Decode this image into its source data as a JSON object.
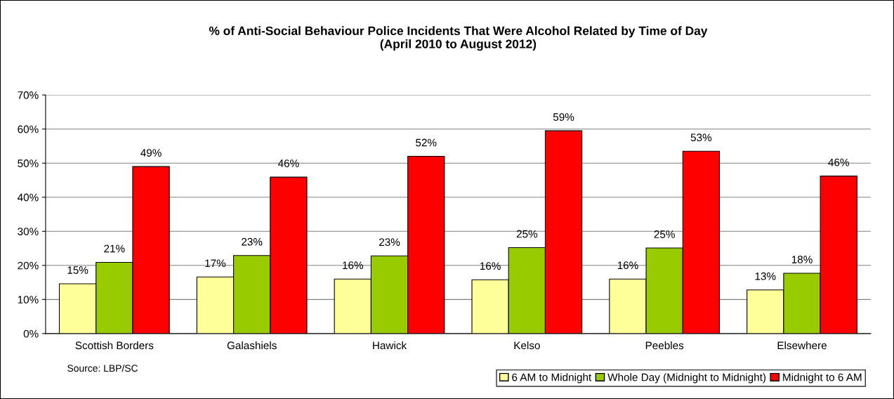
{
  "chart_data": {
    "type": "bar",
    "title": "% of Anti-Social Behaviour Police Incidents That Were Alcohol Related by Time of Day\n(April 2010 to August 2012)",
    "categories": [
      "Scottish Borders",
      "Galashiels",
      "Hawick",
      "Kelso",
      "Peebles",
      "Elsewhere"
    ],
    "series": [
      {
        "name": "6 AM to Midnight",
        "color": "#ffff99",
        "values": [
          14.6,
          16.6,
          16.0,
          15.8,
          16.0,
          12.8
        ],
        "value_labels": [
          "15%",
          "17%",
          "16%",
          "16%",
          "16%",
          "13%"
        ]
      },
      {
        "name": "Whole Day (Midnight to Midnight)",
        "color": "#99cc00",
        "values": [
          20.9,
          22.9,
          22.8,
          25.2,
          25.1,
          17.7
        ],
        "value_labels": [
          "21%",
          "23%",
          "23%",
          "25%",
          "25%",
          "18%"
        ]
      },
      {
        "name": "Midnight to 6 AM",
        "color": "#ff0000",
        "values": [
          49.0,
          45.9,
          52.0,
          59.5,
          53.5,
          46.2
        ],
        "value_labels": [
          "49%",
          "46%",
          "52%",
          "59%",
          "53%",
          "46%"
        ]
      }
    ],
    "ylim": [
      0,
      70
    ],
    "yticks": [
      {
        "value": 0,
        "label": "0%"
      },
      {
        "value": 10,
        "label": "10%"
      },
      {
        "value": 20,
        "label": "20%"
      },
      {
        "value": 30,
        "label": "30%"
      },
      {
        "value": 40,
        "label": "40%"
      },
      {
        "value": 50,
        "label": "50%"
      },
      {
        "value": 60,
        "label": "60%"
      },
      {
        "value": 70,
        "label": "70%"
      }
    ],
    "grid": "y",
    "legend": "bottom right",
    "annotations": [
      "Source: LBP/SC"
    ]
  }
}
